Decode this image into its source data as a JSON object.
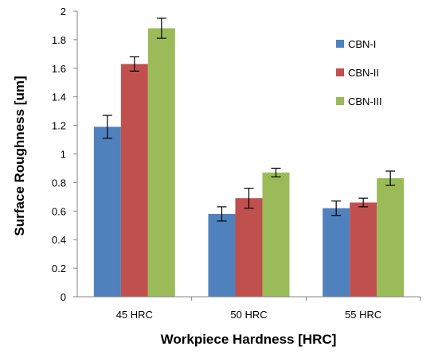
{
  "chart_data": {
    "type": "bar",
    "categories": [
      "45 HRC",
      "50 HRC",
      "55 HRC"
    ],
    "series": [
      {
        "name": "CBN-I",
        "values": [
          1.19,
          0.58,
          0.62
        ],
        "errors": [
          0.08,
          0.05,
          0.05
        ],
        "color": "#4F81BD"
      },
      {
        "name": "CBN-II",
        "values": [
          1.63,
          0.69,
          0.66
        ],
        "errors": [
          0.05,
          0.07,
          0.03
        ],
        "color": "#C0504D"
      },
      {
        "name": "CBN-III",
        "values": [
          1.88,
          0.87,
          0.83
        ],
        "errors": [
          0.07,
          0.03,
          0.05
        ],
        "color": "#9BBB59"
      }
    ],
    "xlabel": "Workpiece Hardness [HRC]",
    "ylabel": "Surface Roughness [um]",
    "ylim": [
      0,
      2
    ],
    "ytick_step": 0.2,
    "legend_position": "right",
    "grid": false
  }
}
